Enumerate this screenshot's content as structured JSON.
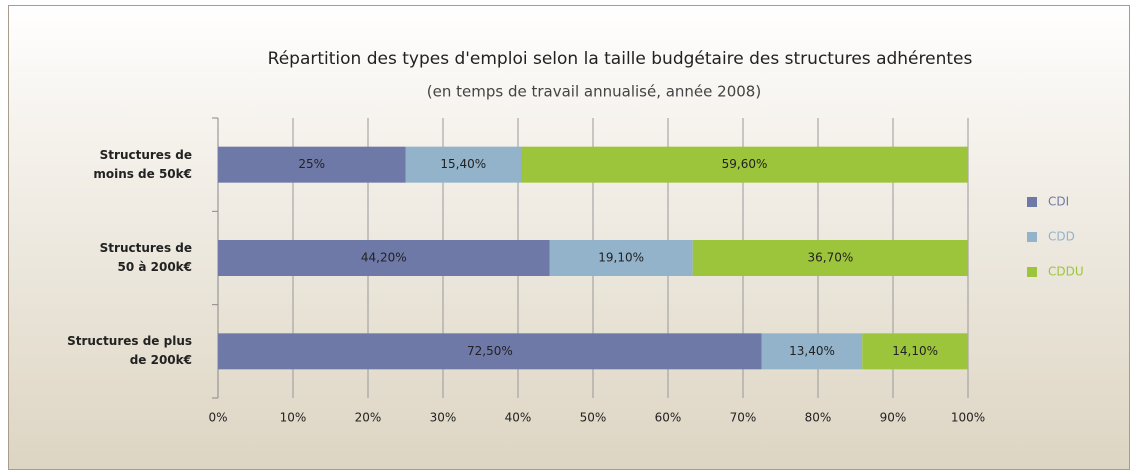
{
  "chart_data": {
    "type": "stacked_barh",
    "title": "Répartition des types d'emploi selon la taille budgétaire des structures adhérentes",
    "subtitle": "(en temps de travail annualisé, année 2008)",
    "categories": [
      "Structures de\nmoins de 50k€",
      "Structures de\n50 à 200k€",
      "Structures de plus\nde 200k€"
    ],
    "series": [
      {
        "name": "CDI",
        "color": "#6f79a8",
        "values": [
          25,
          44.2,
          72.5
        ],
        "value_labels": [
          "25%",
          "44,20%",
          "72,50%"
        ]
      },
      {
        "name": "CDD",
        "color": "#93b3cb",
        "values": [
          15.4,
          19.1,
          13.4
        ],
        "value_labels": [
          "15,40%",
          "19,10%",
          "13,40%"
        ]
      },
      {
        "name": "CDDU",
        "color": "#9dc53b",
        "values": [
          59.6,
          36.7,
          14.1
        ],
        "value_labels": [
          "59,60%",
          "36,70%",
          "14,10%"
        ]
      }
    ],
    "xlim": [
      0,
      100
    ],
    "xticks": [
      {
        "value": 0,
        "label": "0%"
      },
      {
        "value": 10,
        "label": "10%"
      },
      {
        "value": 20,
        "label": "20%"
      },
      {
        "value": 30,
        "label": "30%"
      },
      {
        "value": 40,
        "label": "40%"
      },
      {
        "value": 50,
        "label": "50%"
      },
      {
        "value": 60,
        "label": "60%"
      },
      {
        "value": 70,
        "label": "70%"
      },
      {
        "value": 80,
        "label": "80%"
      },
      {
        "value": 90,
        "label": "90%"
      },
      {
        "value": 100,
        "label": "100%"
      }
    ],
    "grid": true,
    "legend": "right"
  }
}
